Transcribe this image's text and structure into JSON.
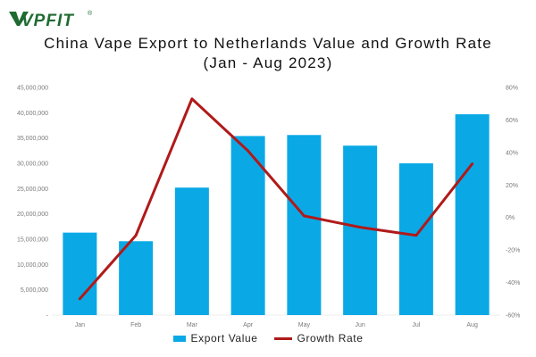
{
  "brand": {
    "name": "VPFIT",
    "mark": "®",
    "color": "#1f6b32"
  },
  "title": {
    "line1": "China Vape Export to Netherlands Value and Growth Rate",
    "line2": "(Jan - Aug 2023)"
  },
  "legend": {
    "bar_label": "Export Value",
    "line_label": "Growth Rate",
    "placement": "bottom-center"
  },
  "colors": {
    "bar": "#0aa9e6",
    "line": "#b01a1a",
    "gridline": "#ececec",
    "tick_text": "#7a7a7a"
  },
  "chart_data": {
    "type": "bar",
    "categories": [
      "Jan",
      "Feb",
      "Mar",
      "Apr",
      "May",
      "Jun",
      "Jul",
      "Aug"
    ],
    "series": [
      {
        "name": "Export Value",
        "type": "bar",
        "axis": "left",
        "values": [
          16300000,
          14600000,
          25200000,
          35400000,
          35600000,
          33500000,
          30000000,
          39700000
        ]
      },
      {
        "name": "Growth Rate",
        "type": "line",
        "axis": "right",
        "values": [
          -50,
          -11,
          73,
          41,
          1,
          -6,
          -11,
          33
        ]
      }
    ],
    "y_left": {
      "min": 0,
      "max": 45000000,
      "tick_labels": [
        "-",
        "5,000,000",
        "10,000,000",
        "15,000,000",
        "20,000,000",
        "25,000,000",
        "30,000,000",
        "35,000,000",
        "40,000,000",
        "45,000,000"
      ]
    },
    "y_right": {
      "min": -60,
      "max": 80,
      "tick_labels": [
        "-60%",
        "-40%",
        "-20%",
        "0%",
        "20%",
        "40%",
        "60%",
        "80%"
      ]
    },
    "grid": false,
    "title": "China Vape Export to Netherlands Value and Growth Rate (Jan - Aug 2023)"
  }
}
